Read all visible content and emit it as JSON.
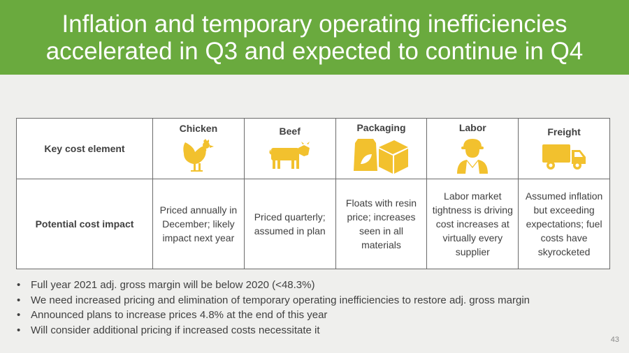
{
  "title": {
    "line1": "Inflation and temporary operating inefficiencies",
    "line2": "accelerated in Q3 and expected to continue in Q4"
  },
  "table": {
    "row1_label": "Key cost element",
    "row2_label": "Potential cost impact",
    "columns": [
      {
        "name": "Chicken",
        "icon": "chicken-icon",
        "impact": "Priced annually in December; likely impact next year"
      },
      {
        "name": "Beef",
        "icon": "cow-icon",
        "impact": "Priced quarterly; assumed in plan"
      },
      {
        "name": "Packaging",
        "icon": "packaging-icon",
        "impact": "Floats with resin price; increases seen in all materials"
      },
      {
        "name": "Labor",
        "icon": "worker-icon",
        "impact": "Labor market tightness is driving cost increases at virtually every supplier"
      },
      {
        "name": "Freight",
        "icon": "truck-icon",
        "impact": "Assumed inflation but exceeding expectations; fuel costs have skyrocketed"
      }
    ]
  },
  "bullets": [
    "Full year 2021 adj. gross margin will be below 2020 (<48.3%)",
    "We need increased pricing and elimination of temporary operating inefficiencies to restore adj. gross margin",
    "Announced plans to increase prices 4.8% at the end of this year",
    "Will consider additional pricing if increased costs necessitate it"
  ],
  "page_number": "43",
  "colors": {
    "title_bar": "#6aaa3e",
    "icon": "#f2c12e",
    "text": "#404040"
  }
}
